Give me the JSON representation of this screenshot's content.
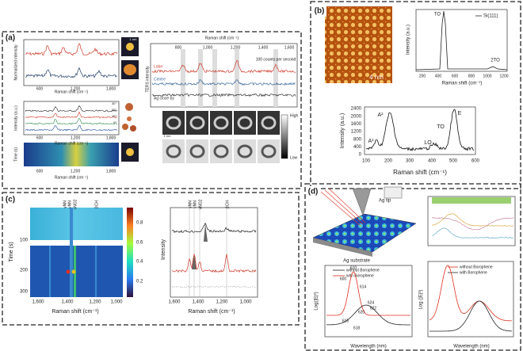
{
  "a": {
    "label": "(a)",
    "norm_intensity": "Normalized intensity",
    "raman_shift": "Raman shift (cm⁻¹)",
    "left_ticks": [
      "600",
      "1,200",
      "1,800"
    ],
    "intensity_au": "Intensity (a.u.)",
    "time": "Time (s)",
    "scale_bar": "1 nm",
    "angles": [
      "30°",
      "20°",
      "10°",
      "0°"
    ],
    "ters_intensity": "TERS intensity",
    "right_ticks": [
      "800",
      "1,000",
      "1,200",
      "1,400",
      "1,600"
    ],
    "curves": [
      "Lobe",
      "Centre",
      "Ag close by"
    ],
    "counts": "100 counts per second",
    "high": "High",
    "low": "Low"
  },
  "b": {
    "label": "(b)",
    "scale_bar": "4 nm",
    "legend": "Si(111)",
    "top_peaks": [
      "TO",
      "2TO"
    ],
    "intensity": "Intensity (a.u.)",
    "raman_shift": "Raman shift (cm⁻¹)",
    "top_xticks": [
      "200",
      "400",
      "600",
      "800",
      "1000",
      "1200"
    ],
    "bottom_peaks": [
      "A²",
      "A¹",
      "E",
      "TO",
      "LO"
    ],
    "bottom_yticks": [
      "0",
      "400",
      "800",
      "1200",
      "1600",
      "2000",
      "2400"
    ],
    "bottom_xticks": [
      "100",
      "200",
      "300",
      "400",
      "500",
      "600"
    ]
  },
  "c": {
    "label": "(c)",
    "modes": [
      "γNN",
      "νNN",
      "νNO2",
      "βCH"
    ],
    "time": "Time (s)",
    "time_ticks": [
      "100",
      "200",
      "300"
    ],
    "colorbar_ticks": [
      "0.8",
      "0.6",
      "0.4",
      "0.2"
    ],
    "raman_shift": "Raman shift (cm⁻¹)",
    "xticks": [
      "1,600",
      "1,400",
      "1,200",
      "1,000"
    ],
    "intensity": "Intensity"
  },
  "d": {
    "label": "(d)",
    "tip": "Ag tip",
    "substrate": "Ag substrate",
    "legend": [
      "without Borophene",
      "with Borophene"
    ],
    "peaks": [
      "610",
      "600",
      "614",
      "616",
      "618",
      "620",
      "622",
      "624"
    ],
    "ylabel": "Log(|E|²)",
    "ylabel2": "Log (|E|²)",
    "xlabel": "Wavelength (nm)"
  }
}
